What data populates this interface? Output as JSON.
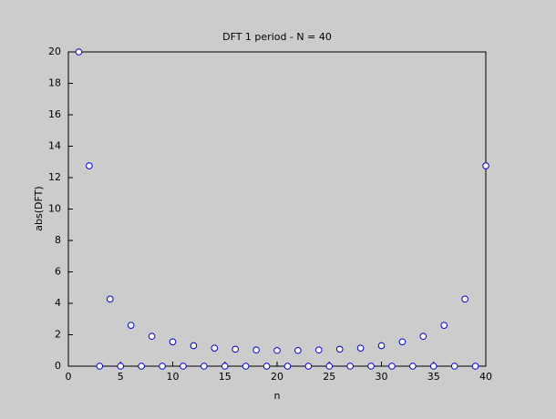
{
  "chart_data": {
    "type": "scatter",
    "title": "DFT 1 period - N = 40",
    "x_label": "n",
    "y_label": "abs(DFT)",
    "x": [
      1,
      2,
      3,
      4,
      5,
      6,
      7,
      8,
      9,
      10,
      11,
      12,
      13,
      14,
      15,
      16,
      17,
      18,
      19,
      20,
      21,
      22,
      23,
      24,
      25,
      26,
      27,
      28,
      29,
      30,
      31,
      32,
      33,
      34,
      35,
      36,
      37,
      38,
      39,
      40
    ],
    "series": [
      {
        "color": "#0000cc",
        "values": [
          20,
          12.75,
          0,
          4.27,
          0,
          2.6,
          0,
          1.9,
          0,
          1.55,
          0,
          1.3,
          0,
          1.15,
          0,
          1.08,
          0,
          1.03,
          0,
          1.0,
          0,
          1.0,
          0,
          1.03,
          0,
          1.08,
          0,
          1.15,
          0,
          1.3,
          0,
          1.55,
          0,
          1.9,
          0,
          2.6,
          0,
          4.27,
          0,
          12.75
        ]
      }
    ],
    "xlim": [
      0,
      40
    ],
    "ylim": [
      0,
      20
    ],
    "xticks": [
      0,
      5,
      10,
      15,
      20,
      25,
      30,
      35,
      40
    ],
    "yticks": [
      0,
      2,
      4,
      6,
      8,
      10,
      12,
      14,
      16,
      18,
      20
    ]
  }
}
